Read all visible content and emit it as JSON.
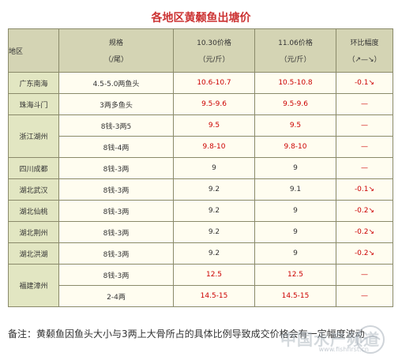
{
  "title": "各地区黄颡鱼出塘价",
  "header": {
    "region": "地区",
    "spec_line1": "规格",
    "spec_line2": "（/尾）",
    "price1_line1": "10.30价格",
    "price1_line2": "（元/斤）",
    "price2_line1": "11.06价格",
    "price2_line2": "（元/斤）",
    "change_line1": "环比幅度",
    "change_line2": "（↗—↘）"
  },
  "rows": [
    {
      "region": "广东南海",
      "spec": "4.5-5.0两鱼头",
      "p1": "10.6-10.7",
      "p2": "10.5-10.8",
      "chg": "-0.1↘"
    },
    {
      "region": "珠海斗门",
      "spec": "3两多鱼头",
      "p1": "9.5-9.6",
      "p2": "9.5-9.6",
      "chg": "—"
    },
    {
      "region": "浙江湖州",
      "spec": "8钱-3两5",
      "p1": "9.5",
      "p2": "9.5",
      "chg": "—"
    },
    {
      "region": "",
      "spec": "8钱-4两",
      "p1": "9.8-10",
      "p2": "9.8-10",
      "chg": "—"
    },
    {
      "region": "四川成都",
      "spec": "8钱-3两",
      "p1": "9",
      "p2": "9",
      "chg": "—"
    },
    {
      "region": "湖北武汉",
      "spec": "8钱-3两",
      "p1": "9.2",
      "p2": "9.1",
      "chg": "-0.1↘"
    },
    {
      "region": "湖北仙桃",
      "spec": "8钱-3两",
      "p1": "9.2",
      "p2": "9",
      "chg": "-0.2↘"
    },
    {
      "region": "湖北荆州",
      "spec": "8钱-3两",
      "p1": "9.2",
      "p2": "9",
      "chg": "-0.2↘"
    },
    {
      "region": "湖北洪湖",
      "spec": "8钱-3两",
      "p1": "9.2",
      "p2": "9",
      "chg": "-0.2↘"
    },
    {
      "region": "福建漳州",
      "spec": "8钱-3两",
      "p1": "12.5",
      "p2": "12.5",
      "chg": "—"
    },
    {
      "region": "",
      "spec": "2-4两",
      "p1": "14.5-15",
      "p2": "14.5-15",
      "chg": "—"
    }
  ],
  "note": "备注：黄颡鱼因鱼头大小与3两上大骨所占的具体比例导致成交价格会有一定幅度波动",
  "watermark": {
    "text": "中国水产频道",
    "url": "www.fishfirst.cn"
  },
  "colors": {
    "accent": "#cc3333",
    "price_red": "#cc0000",
    "header_bg": "#d4d4b4",
    "region_bg": "#e2e6c2",
    "cell_bg": "#fffdf0"
  }
}
